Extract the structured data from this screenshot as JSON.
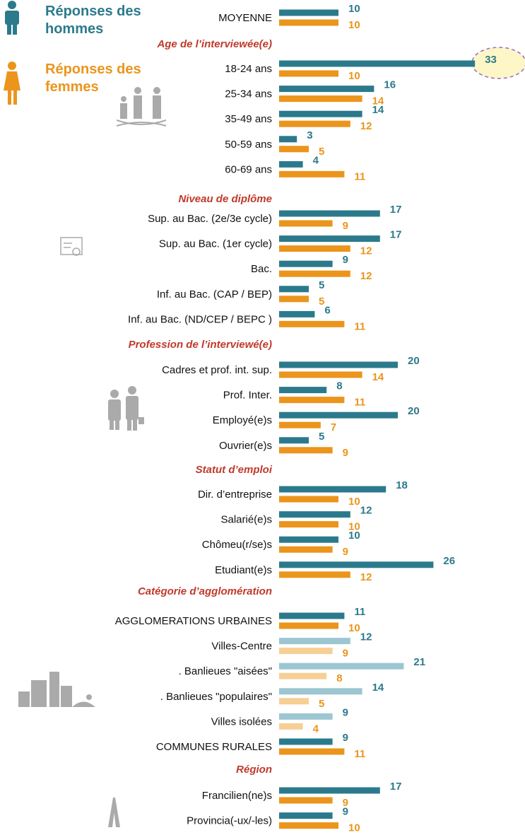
{
  "chart_data": {
    "type": "bar",
    "series": [
      {
        "name": "Réponses des hommes",
        "color": "#2b7a8c",
        "values": [
          [
            10
          ],
          [
            33,
            16,
            14,
            3,
            4
          ],
          [
            17,
            17,
            9,
            5,
            6
          ],
          [
            20,
            8,
            20,
            5
          ],
          [
            18,
            12,
            10,
            26
          ],
          [
            11,
            12,
            21,
            14,
            9,
            9
          ],
          [
            17,
            9
          ]
        ],
        "colors": [
          [
            "#2b7a8c"
          ],
          [
            "#2b7a8c",
            "#2b7a8c",
            "#2b7a8c",
            "#2b7a8c",
            "#2b7a8c"
          ],
          [
            "#2b7a8c",
            "#2b7a8c",
            "#2b7a8c",
            "#2b7a8c",
            "#2b7a8c"
          ],
          [
            "#2b7a8c",
            "#2b7a8c",
            "#2b7a8c",
            "#2b7a8c"
          ],
          [
            "#2b7a8c",
            "#2b7a8c",
            "#2b7a8c",
            "#2b7a8c"
          ],
          [
            "#2b7a8c",
            "#9cc6d1",
            "#9cc6d1",
            "#9cc6d1",
            "#9cc6d1",
            "#2b7a8c"
          ],
          [
            "#2b7a8c",
            "#2b7a8c"
          ]
        ]
      },
      {
        "name": "Réponses des femmes",
        "color": "#eb951c",
        "values": [
          [
            10
          ],
          [
            10,
            14,
            12,
            5,
            11
          ],
          [
            9,
            12,
            12,
            5,
            11
          ],
          [
            14,
            11,
            7,
            9
          ],
          [
            10,
            10,
            9,
            12
          ],
          [
            10,
            9,
            8,
            5,
            4,
            11
          ],
          [
            9,
            10
          ]
        ],
        "colors": [
          [
            "#eb951c"
          ],
          [
            "#eb951c",
            "#eb951c",
            "#eb951c",
            "#eb951c",
            "#eb951c"
          ],
          [
            "#eb951c",
            "#eb951c",
            "#eb951c",
            "#eb951c",
            "#eb951c"
          ],
          [
            "#eb951c",
            "#eb951c",
            "#eb951c",
            "#eb951c"
          ],
          [
            "#eb951c",
            "#eb951c",
            "#eb951c",
            "#eb951c"
          ],
          [
            "#eb951c",
            "#f6cf95",
            "#f6cf95",
            "#f6cf95",
            "#f6cf95",
            "#eb951c"
          ],
          [
            "#eb951c",
            "#eb951c"
          ]
        ]
      }
    ],
    "groups": [
      {
        "categories": [
          "MOYENNE"
        ]
      },
      {
        "title": "Age de l’interviewée(e)",
        "categories": [
          "18-24 ans",
          "25-34 ans",
          "35-49 ans",
          "50-59 ans",
          "60-69 ans"
        ]
      },
      {
        "title": "Niveau de diplôme",
        "categories": [
          "Sup. au Bac. (2e/3e cycle)",
          "Sup. au Bac. (1er cycle)",
          "Bac.",
          "Inf. au Bac. (CAP / BEP)",
          "Inf. au Bac. (ND/CEP / BEPC )"
        ]
      },
      {
        "title": "Profession de l’interviewé(e)",
        "categories": [
          "Cadres et prof. int. sup.",
          "Prof. Inter.",
          "Employé(e)s",
          "Ouvrier(e)s"
        ]
      },
      {
        "title": "Statut d’emploi",
        "categories": [
          "Dir. d’entreprise",
          "Salarié(e)s",
          "Chômeu(r/se)s",
          "Etudiant(e)s"
        ]
      },
      {
        "title": "Catégorie d’agglomération",
        "categories": [
          "AGGLOMERATIONS URBAINES",
          "Villes-Centre",
          ". Banlieues \"aisées\"",
          ". Banlieues \"populaires\"",
          "Villes isolées",
          "COMMUNES RURALES"
        ]
      },
      {
        "title": "Région",
        "categories": [
          "Francilien(ne)s",
          "Provincia(-ux/-les)"
        ]
      }
    ]
  }
}
